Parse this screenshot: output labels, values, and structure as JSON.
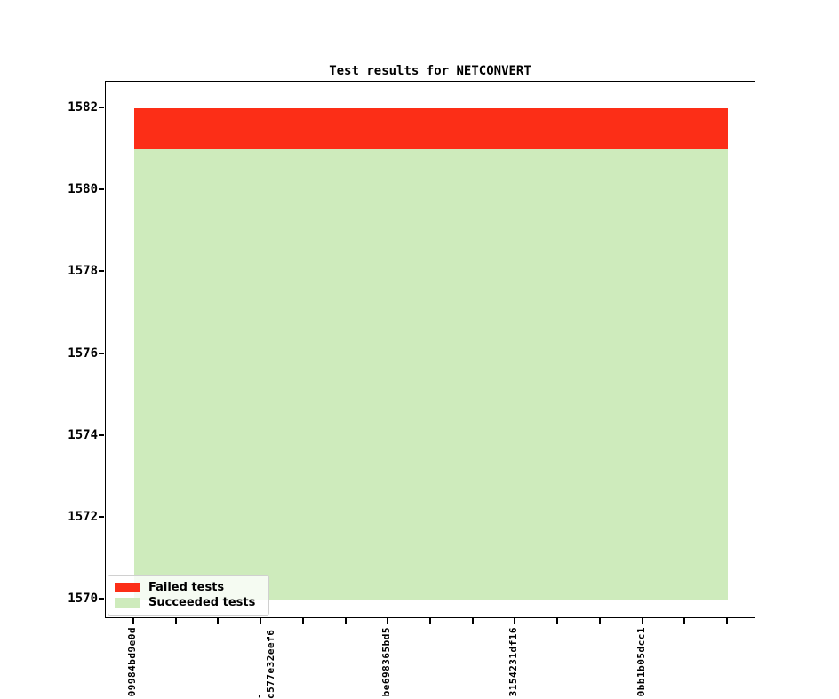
{
  "title": "Test results for NETCONVERT",
  "colors": {
    "failed": "#fc2e17",
    "succeeded": "#ceebbc",
    "axis": "#000000",
    "legend_border": "#d0d0d0",
    "legend_bg": "rgba(255,255,255,0.8)"
  },
  "legend": {
    "position": "lower left",
    "items": [
      {
        "label": "Failed tests",
        "color_key": "failed"
      },
      {
        "label": "Succeeded tests",
        "color_key": "succeeded"
      }
    ]
  },
  "chart_data": {
    "type": "area",
    "stacked": true,
    "title": "Test results for NETCONVERT",
    "xlabel": "",
    "ylabel": "",
    "x_count": 15,
    "x_tick_labels": [
      {
        "index": 0,
        "label": "09984bd9e0d"
      },
      {
        "index": 3,
        "label": "-c577e32eef6"
      },
      {
        "index": 6,
        "label": "be698365bd5"
      },
      {
        "index": 9,
        "label": "3154231df16"
      },
      {
        "index": 12,
        "label": "0bb1b05dcc1"
      }
    ],
    "series": [
      {
        "name": "Failed tests",
        "color_key": "failed",
        "values": [
          1,
          1,
          1,
          1,
          1,
          1,
          1,
          1,
          1,
          1,
          1,
          1,
          1,
          1,
          1
        ]
      },
      {
        "name": "Succeeded tests",
        "color_key": "succeeded",
        "values": [
          1581,
          1581,
          1581,
          1581,
          1581,
          1581,
          1581,
          1581,
          1581,
          1581,
          1581,
          1581,
          1581,
          1581,
          1581
        ]
      }
    ],
    "total_tests": 1582,
    "ylim": [
      1570,
      1582
    ],
    "y_ticks": [
      1570,
      1572,
      1574,
      1576,
      1578,
      1580,
      1582
    ],
    "grid": false,
    "legend_position": "lower left"
  }
}
